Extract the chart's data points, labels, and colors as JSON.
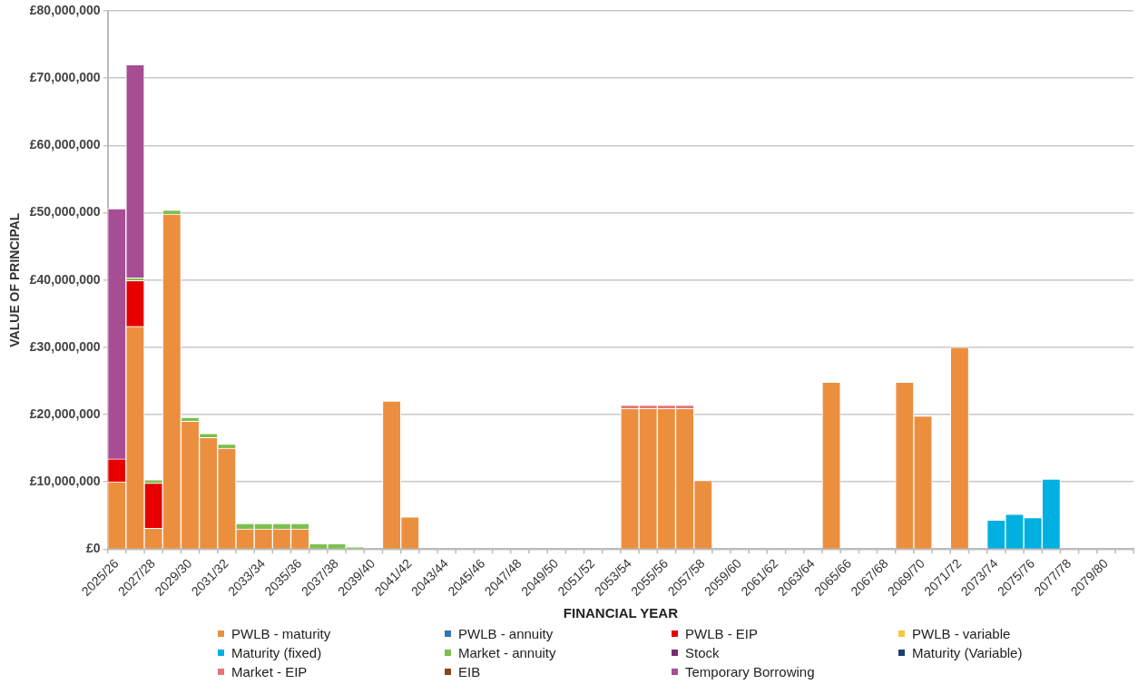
{
  "chart_data": {
    "type": "bar",
    "stacked": true,
    "xlabel": "FINANCIAL YEAR",
    "ylabel": "VALUE OF PRINCIPAL",
    "categories": [
      "2025/26",
      null,
      "2027/28",
      null,
      "2029/30",
      null,
      "2031/32",
      null,
      "2033/34",
      null,
      "2035/36",
      null,
      "2037/38",
      null,
      "2039/40",
      null,
      "2041/42",
      null,
      "2043/44",
      null,
      "2045/46",
      null,
      "2047/48",
      null,
      "2049/50",
      null,
      "2051/52",
      null,
      "2053/54",
      null,
      "2055/56",
      null,
      "2057/58",
      null,
      "2059/60",
      null,
      "2061/62",
      null,
      "2063/64",
      null,
      "2065/66",
      null,
      "2067/68",
      null,
      "2069/70",
      null,
      "2071/72",
      null,
      "2073/74",
      null,
      "2075/76",
      null,
      "2077/78",
      null,
      "2079/80",
      null
    ],
    "ylim": [
      0,
      80000000
    ],
    "yticks": [
      {
        "value": 0,
        "label": "£0"
      },
      {
        "value": 10000000,
        "label": "£10,000,000"
      },
      {
        "value": 20000000,
        "label": "£20,000,000"
      },
      {
        "value": 30000000,
        "label": "£30,000,000"
      },
      {
        "value": 40000000,
        "label": "£40,000,000"
      },
      {
        "value": 50000000,
        "label": "£50,000,000"
      },
      {
        "value": 60000000,
        "label": "£60,000,000"
      },
      {
        "value": 70000000,
        "label": "£70,000,000"
      },
      {
        "value": 80000000,
        "label": "£80,000,000"
      }
    ],
    "grid": "y",
    "legend": "bottom",
    "series": [
      {
        "name": "PWLB - maturity",
        "color": "#eb8f3f",
        "values": [
          10000000,
          33100000,
          3100000,
          49800000,
          19000000,
          16600000,
          15000000,
          3000000,
          3000000,
          3000000,
          3000000,
          null,
          null,
          null,
          null,
          22000000,
          4800000,
          null,
          null,
          null,
          null,
          null,
          null,
          null,
          null,
          null,
          null,
          null,
          20900000,
          20900000,
          20900000,
          20900000,
          10200000,
          null,
          null,
          null,
          null,
          null,
          null,
          24800000,
          null,
          null,
          null,
          24800000,
          19800000,
          null,
          30000000,
          null,
          null,
          null,
          null,
          null,
          null,
          null,
          null,
          null
        ]
      },
      {
        "name": "PWLB - annuity",
        "color": "#2e75c0",
        "values": [
          null,
          null,
          null,
          null,
          null,
          null,
          null,
          null,
          null,
          null,
          null,
          null,
          null,
          null,
          null,
          null,
          null,
          null,
          null,
          null,
          null,
          null,
          null,
          null,
          null,
          null,
          null,
          null,
          null,
          null,
          null,
          null,
          null,
          null,
          null,
          null,
          null,
          null,
          null,
          null,
          null,
          null,
          null,
          null,
          null,
          null,
          null,
          null,
          null,
          null,
          null,
          null,
          null,
          null,
          null,
          null
        ]
      },
      {
        "name": "PWLB - EIP",
        "color": "#e60000",
        "values": [
          3400000,
          6800000,
          6700000,
          null,
          null,
          null,
          null,
          null,
          null,
          null,
          null,
          null,
          null,
          null,
          null,
          null,
          null,
          null,
          null,
          null,
          null,
          null,
          null,
          null,
          null,
          null,
          null,
          null,
          null,
          null,
          null,
          null,
          null,
          null,
          null,
          null,
          null,
          null,
          null,
          null,
          null,
          null,
          null,
          null,
          null,
          null,
          null,
          null,
          null,
          null,
          null,
          null,
          null,
          null,
          null,
          null
        ]
      },
      {
        "name": "PWLB - variable",
        "color": "#f4c842",
        "values": [
          null,
          null,
          null,
          null,
          null,
          null,
          null,
          null,
          null,
          null,
          null,
          null,
          null,
          null,
          null,
          null,
          null,
          null,
          null,
          null,
          null,
          null,
          null,
          null,
          null,
          null,
          null,
          null,
          null,
          null,
          null,
          null,
          null,
          null,
          null,
          null,
          null,
          null,
          null,
          null,
          null,
          null,
          null,
          null,
          null,
          null,
          null,
          null,
          null,
          null,
          null,
          null,
          null,
          null,
          null,
          null
        ]
      },
      {
        "name": "Maturity (fixed)",
        "color": "#00b0e0",
        "values": [
          null,
          null,
          null,
          null,
          null,
          null,
          null,
          null,
          null,
          null,
          null,
          null,
          null,
          null,
          null,
          null,
          null,
          null,
          null,
          null,
          null,
          null,
          null,
          null,
          null,
          null,
          null,
          null,
          null,
          null,
          null,
          null,
          null,
          null,
          null,
          null,
          null,
          null,
          null,
          null,
          null,
          null,
          null,
          null,
          null,
          null,
          null,
          null,
          4300000,
          5200000,
          4700000,
          10400000,
          null,
          null,
          null,
          null
        ]
      },
      {
        "name": "Market - annuity",
        "color": "#7cbf4f",
        "values": [
          null,
          400000,
          500000,
          600000,
          600000,
          600000,
          600000,
          800000,
          800000,
          800000,
          800000,
          800000,
          800000,
          300000,
          null,
          null,
          null,
          null,
          null,
          null,
          null,
          null,
          null,
          null,
          null,
          null,
          null,
          null,
          null,
          null,
          null,
          null,
          null,
          null,
          null,
          null,
          null,
          null,
          null,
          null,
          null,
          null,
          null,
          null,
          null,
          null,
          null,
          null,
          null,
          null,
          null,
          null,
          null,
          null,
          null,
          null
        ]
      },
      {
        "name": "Stock",
        "color": "#7a2b6e",
        "values": [
          null,
          null,
          null,
          null,
          null,
          null,
          null,
          null,
          null,
          null,
          null,
          null,
          null,
          null,
          null,
          null,
          null,
          null,
          null,
          null,
          null,
          null,
          null,
          null,
          null,
          null,
          null,
          null,
          null,
          null,
          null,
          null,
          null,
          null,
          null,
          null,
          null,
          null,
          null,
          null,
          null,
          null,
          null,
          null,
          null,
          null,
          null,
          null,
          null,
          null,
          null,
          null,
          null,
          null,
          null,
          null
        ]
      },
      {
        "name": "Maturity (Variable)",
        "color": "#1f3e6e",
        "values": [
          null,
          null,
          null,
          null,
          null,
          null,
          null,
          null,
          null,
          null,
          null,
          null,
          null,
          null,
          null,
          null,
          null,
          null,
          null,
          null,
          null,
          null,
          null,
          null,
          null,
          null,
          null,
          null,
          null,
          null,
          null,
          null,
          null,
          null,
          null,
          null,
          null,
          null,
          null,
          null,
          null,
          null,
          null,
          null,
          null,
          null,
          null,
          null,
          null,
          null,
          null,
          null,
          null,
          null,
          null,
          null
        ]
      },
      {
        "name": "Market - EIP",
        "color": "#e87479",
        "values": [
          null,
          null,
          null,
          null,
          null,
          null,
          null,
          null,
          null,
          null,
          null,
          null,
          null,
          null,
          null,
          null,
          null,
          null,
          null,
          null,
          null,
          null,
          null,
          null,
          null,
          null,
          null,
          null,
          500000,
          500000,
          500000,
          500000,
          null,
          null,
          null,
          null,
          null,
          null,
          null,
          null,
          null,
          null,
          null,
          null,
          null,
          null,
          null,
          null,
          null,
          null,
          null,
          null,
          null,
          null,
          null,
          null
        ]
      },
      {
        "name": "EIB",
        "color": "#8b4513",
        "values": [
          null,
          null,
          null,
          null,
          null,
          null,
          null,
          null,
          null,
          null,
          null,
          null,
          null,
          null,
          null,
          null,
          null,
          null,
          null,
          null,
          null,
          null,
          null,
          null,
          null,
          null,
          null,
          null,
          null,
          null,
          null,
          null,
          null,
          null,
          null,
          null,
          null,
          null,
          null,
          null,
          null,
          null,
          null,
          null,
          null,
          null,
          null,
          null,
          null,
          null,
          null,
          null,
          null,
          null,
          null,
          null
        ]
      },
      {
        "name": "Temporary Borrowing",
        "color": "#a64d94",
        "values": [
          37200000,
          31700000,
          null,
          null,
          null,
          null,
          null,
          null,
          null,
          null,
          null,
          null,
          null,
          null,
          null,
          null,
          null,
          null,
          null,
          null,
          null,
          null,
          null,
          null,
          null,
          null,
          null,
          null,
          null,
          null,
          null,
          null,
          null,
          null,
          null,
          null,
          null,
          null,
          null,
          null,
          null,
          null,
          null,
          null,
          null,
          null,
          null,
          null,
          null,
          null,
          null,
          null,
          null,
          null,
          null,
          null
        ]
      }
    ]
  }
}
